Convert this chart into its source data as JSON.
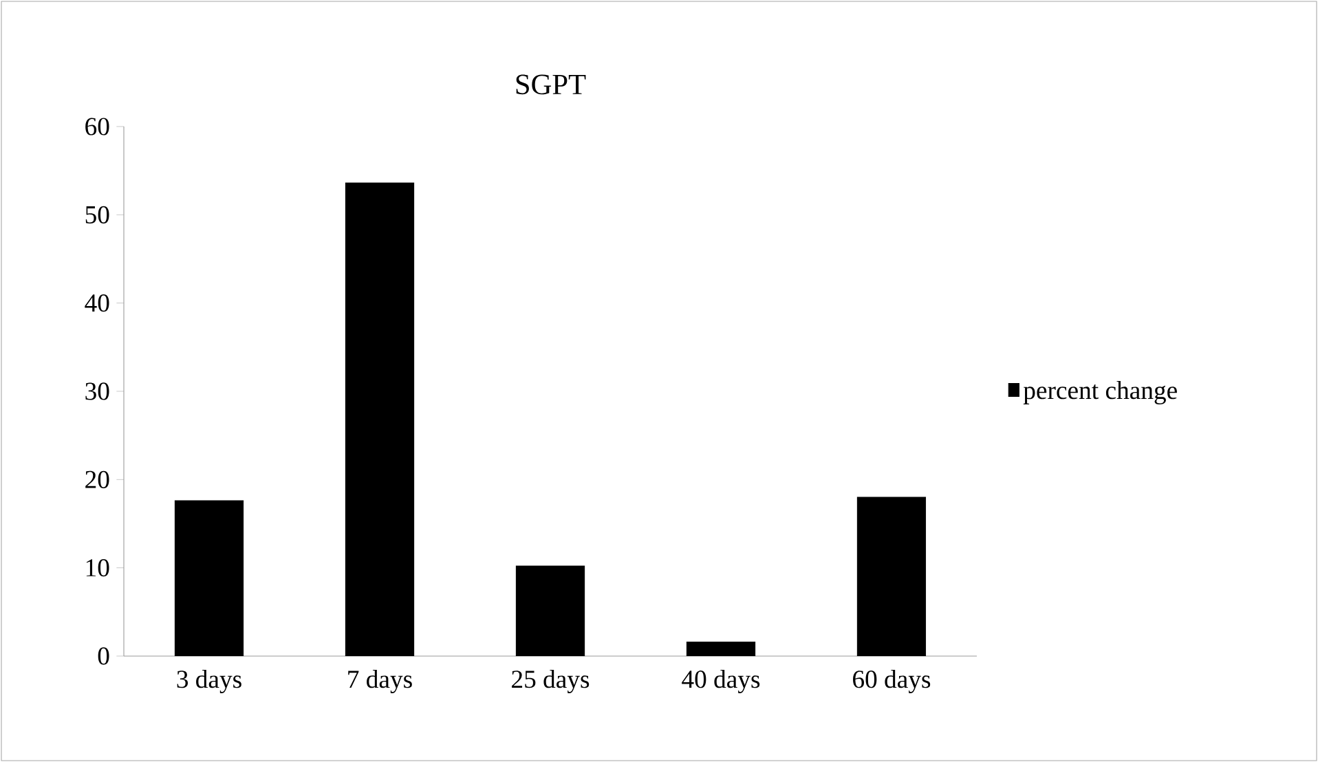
{
  "chart_data": {
    "type": "bar",
    "title": "SGPT",
    "categories": [
      "3 days",
      "7 days",
      "25 days",
      "40 days",
      "60 days"
    ],
    "series": [
      {
        "name": "percent change",
        "color": "#000000",
        "values": [
          17.6,
          53.6,
          10.2,
          1.6,
          18.0
        ]
      }
    ],
    "ylim": [
      0,
      60
    ],
    "yticks": [
      0,
      10,
      20,
      30,
      40,
      50,
      60
    ],
    "legend": "right"
  }
}
